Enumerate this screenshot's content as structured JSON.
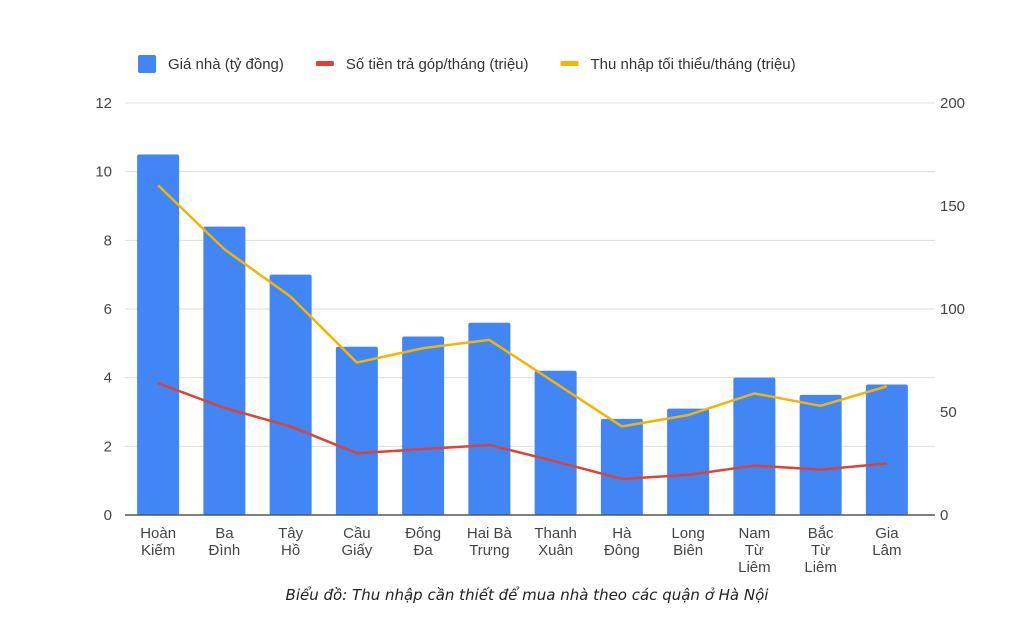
{
  "chart_data": {
    "type": "bar",
    "categories": [
      [
        "Hoàn",
        "Kiếm"
      ],
      [
        "Ba",
        "Đình"
      ],
      [
        "Tây",
        "Hồ"
      ],
      [
        "Cầu",
        "Giấy"
      ],
      [
        "Đống",
        "Đa"
      ],
      [
        "Hai Bà",
        "Trưng"
      ],
      [
        "Thanh",
        "Xuân"
      ],
      [
        "Hà",
        "Đông"
      ],
      [
        "Long",
        "Biên"
      ],
      [
        "Nam",
        "Từ",
        "Liêm"
      ],
      [
        "Bắc",
        "Từ",
        "Liêm"
      ],
      [
        "Gia",
        "Lâm"
      ]
    ],
    "series": [
      {
        "name": "Giá nhà (tỷ đồng)",
        "type": "bar",
        "axis": "left",
        "color": "#4285f4",
        "values": [
          10.5,
          8.4,
          7.0,
          4.9,
          5.2,
          5.6,
          4.2,
          2.8,
          3.1,
          4.0,
          3.5,
          3.8
        ]
      },
      {
        "name": "Số tiền trả góp/tháng (triệu)",
        "type": "line",
        "axis": "right",
        "color": "#db4437",
        "values": [
          64,
          52,
          43,
          30,
          32,
          34,
          26,
          17.5,
          19.5,
          24,
          22,
          25
        ]
      },
      {
        "name": "Thu nhập tối thiểu/tháng (triệu)",
        "type": "line",
        "axis": "right",
        "color": "#f4b400",
        "values": [
          160,
          129,
          106,
          74,
          81,
          85,
          64,
          43,
          48.5,
          59,
          53,
          62.5
        ]
      }
    ],
    "left_axis": {
      "ylim": [
        0,
        12
      ],
      "ticks": [
        "0",
        "2",
        "4",
        "6",
        "8",
        "10",
        "12"
      ]
    },
    "right_axis": {
      "ylim": [
        0,
        200
      ],
      "ticks": [
        "0",
        "50",
        "100",
        "150",
        "200"
      ]
    },
    "grid": true,
    "legend": "top"
  },
  "caption": "Biểu đồ: Thu nhập cần thiết để mua nhà theo các quận ở Hà Nội"
}
